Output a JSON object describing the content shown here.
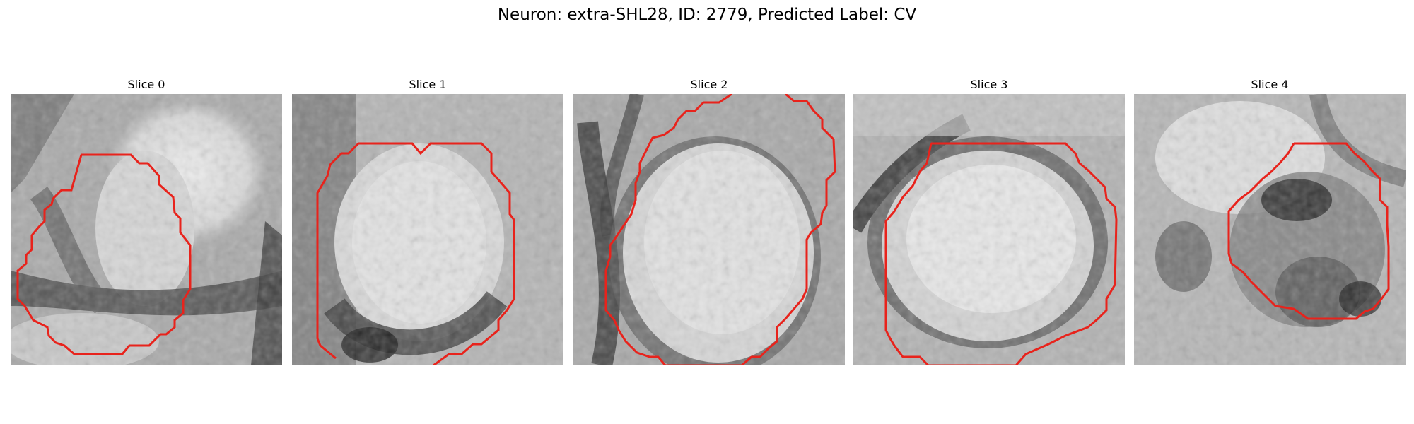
{
  "figure": {
    "title": "Neuron: extra-SHL28, ID: 2779, Predicted Label: CV",
    "contour_color": "#e8231c"
  },
  "panels": [
    {
      "title": "Slice 0"
    },
    {
      "title": "Slice 1"
    },
    {
      "title": "Slice 2"
    },
    {
      "title": "Slice 3"
    },
    {
      "title": "Slice 4"
    }
  ]
}
